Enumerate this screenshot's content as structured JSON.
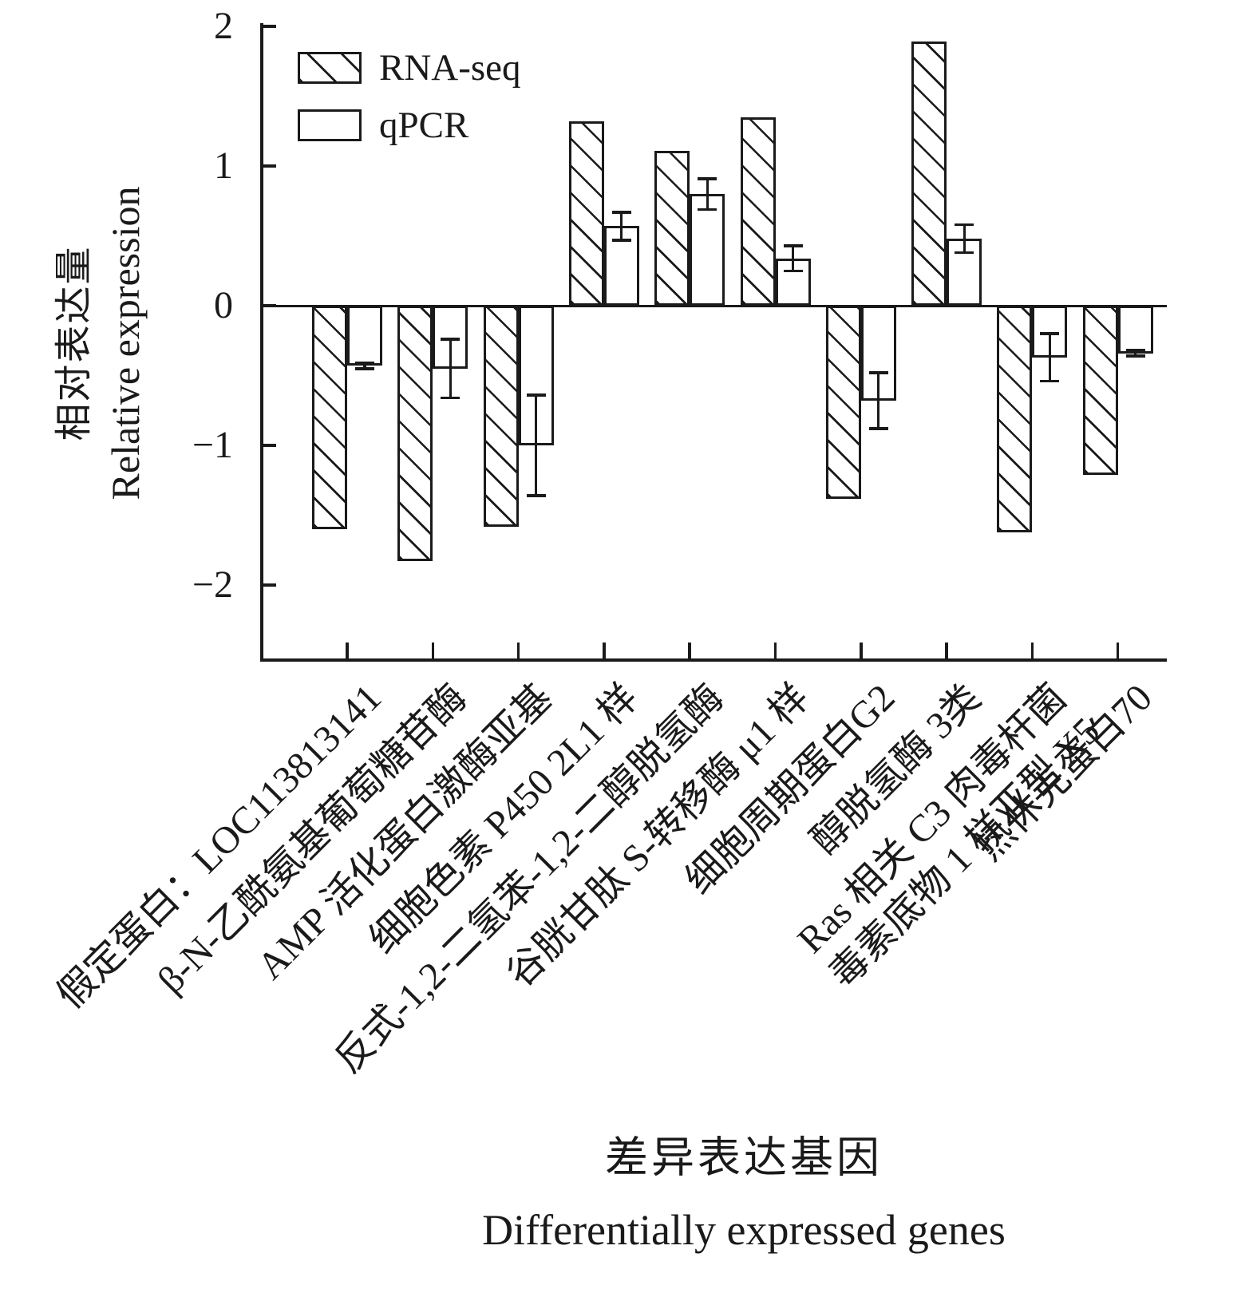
{
  "colors": {
    "ink": "#1a1a1a",
    "background": "#ffffff"
  },
  "legend": {
    "items": [
      {
        "label": "RNA-seq",
        "swatch": "hatched"
      },
      {
        "label": "qPCR",
        "swatch": "open"
      }
    ]
  },
  "y_axis": {
    "title_zh": "相对表达量",
    "title_en": "Relative expression",
    "tick_labels": [
      "2",
      "1",
      "0",
      "−1",
      "−2"
    ],
    "tick_values": [
      2,
      1,
      0,
      -1,
      -2
    ]
  },
  "x_axis": {
    "title_zh": "差异表达基因",
    "title_en": "Differentially expressed genes"
  },
  "chart_data": {
    "type": "bar",
    "title": "",
    "xlabel": "差异表达基因 / Differentially expressed genes",
    "ylabel": "相对表达量 / Relative expression",
    "ylim": [
      -2.53,
      2.03
    ],
    "yticks": [
      2,
      1,
      0,
      -1,
      -2
    ],
    "grid": false,
    "legend_position": "upper-left",
    "bar_styles": {
      "RNA-seq": "hatched-diagonal",
      "qPCR": "open-white"
    },
    "categories": [
      [
        "假定蛋白：LOC113813141"
      ],
      [
        "β-N-乙酰氨基葡萄糖苷酶"
      ],
      [
        "AMP 活化蛋白激酶亚基"
      ],
      [
        "细胞色素 P450 2L1 样"
      ],
      [
        "反式-1,2-二氢苯-1,2-二醇脱氢酶"
      ],
      [
        "谷胱甘肽 S-转移酶 μ1 样"
      ],
      [
        "细胞周期蛋白G2"
      ],
      [
        "醇脱氢酶 3类"
      ],
      [
        "Ras 相关 C3 肉毒杆菌",
        "毒素底物 1 样亚型 X5"
      ],
      [
        "热休克蛋白70"
      ]
    ],
    "series": [
      {
        "name": "RNA-seq",
        "style": "hatched",
        "values": [
          -1.6,
          -1.83,
          -1.58,
          1.32,
          1.11,
          1.35,
          -1.38,
          1.89,
          -1.62,
          -1.21
        ]
      },
      {
        "name": "qPCR",
        "style": "open",
        "values": [
          -0.43,
          -0.45,
          -1.0,
          0.57,
          0.8,
          0.34,
          -0.68,
          0.48,
          -0.37,
          -0.34
        ],
        "errors": [
          0.02,
          0.21,
          0.36,
          0.1,
          0.11,
          0.09,
          0.2,
          0.1,
          0.17,
          0.02
        ]
      }
    ]
  }
}
